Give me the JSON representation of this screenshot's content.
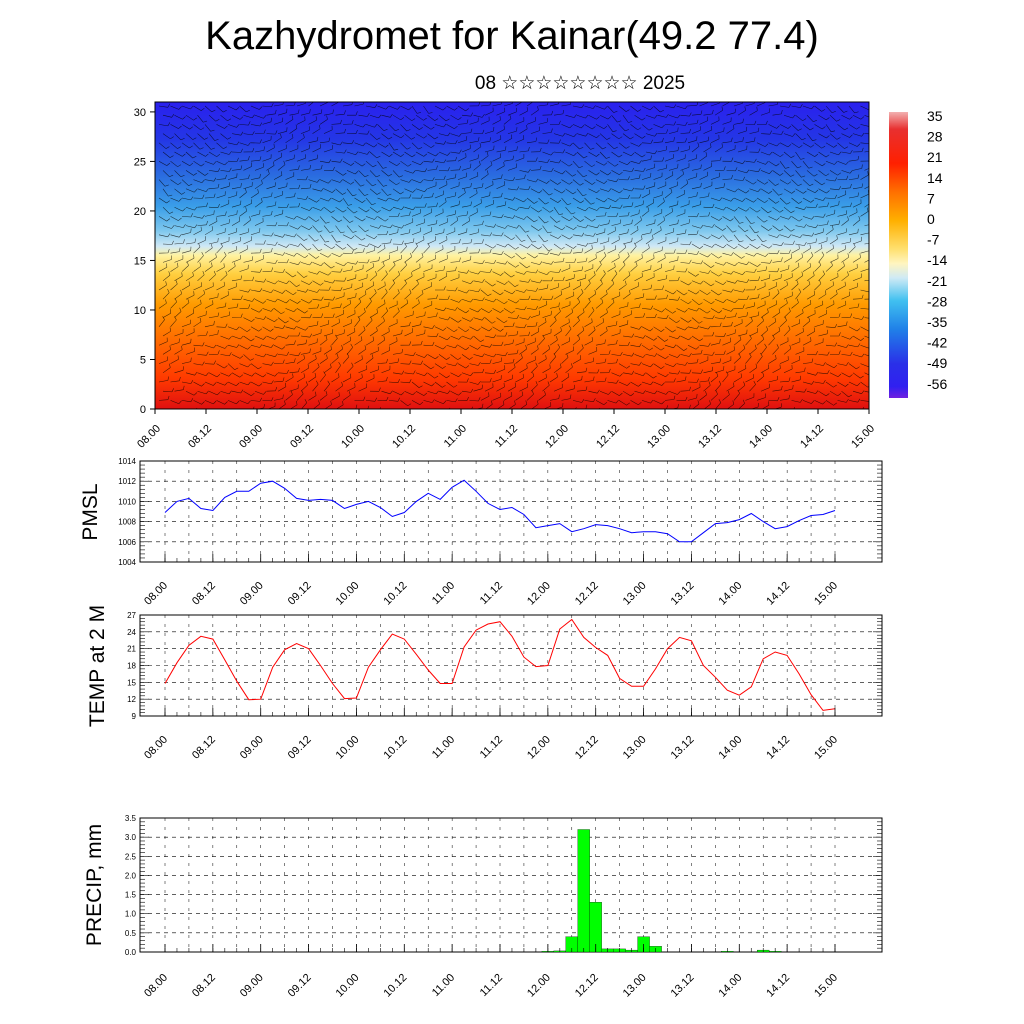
{
  "title": "Kazhydromet for Kainar(49.2 77.4)",
  "subtitle": "08 ☆☆☆☆☆☆☆☆ 2025",
  "colors": {
    "pmsl_line": "#0000ff",
    "temp_line": "#ff0000",
    "precip_bar": "#00ff00",
    "wind_barbs": "#000000"
  },
  "chart_data": [
    {
      "type": "heatmap",
      "name": "upper-air-cross-section",
      "ylim": [
        0,
        31
      ],
      "y_ticks": [
        "0",
        "5",
        "10",
        "15",
        "20",
        "25",
        "30"
      ],
      "x_ticks": [
        "08.00",
        "08.12",
        "09.00",
        "09.12",
        "10.00",
        "10.12",
        "11.00",
        "11.12",
        "12.00",
        "12.12",
        "13.00",
        "13.12",
        "14.00",
        "14.12",
        "15.00"
      ],
      "colorbar_labels": [
        "35",
        "28",
        "21",
        "14",
        "7",
        "0",
        "-7",
        "-14",
        "-21",
        "-28",
        "-35",
        "-42",
        "-49",
        "-56"
      ]
    },
    {
      "type": "line",
      "name": "PMSL",
      "ylabel": "PMSL",
      "ylim": [
        1004,
        1014
      ],
      "y_ticks": [
        "1004",
        "1006",
        "1008",
        "1010",
        "1012",
        "1014"
      ],
      "x_ticks": [
        "08.00",
        "08.12",
        "09.00",
        "09.12",
        "10.00",
        "10.12",
        "11.00",
        "11.12",
        "12.00",
        "12.12",
        "13.00",
        "13.12",
        "14.00",
        "14.12",
        "15.00"
      ],
      "values": [
        1008.9,
        1010.0,
        1010.3,
        1009.3,
        1009.1,
        1010.4,
        1011.0,
        1011.0,
        1011.8,
        1012.0,
        1011.3,
        1010.3,
        1010.1,
        1010.2,
        1010.1,
        1009.3,
        1009.7,
        1010.0,
        1009.4,
        1008.5,
        1008.9,
        1010.0,
        1010.8,
        1010.2,
        1011.4,
        1012.1,
        1011.0,
        1009.8,
        1009.2,
        1009.4,
        1008.7,
        1007.4,
        1007.6,
        1007.8,
        1007.0,
        1007.3,
        1007.7,
        1007.6,
        1007.3,
        1006.9,
        1007.0,
        1007.0,
        1006.8,
        1006.0,
        1006.0,
        1006.9,
        1007.8,
        1007.9,
        1008.2,
        1008.8,
        1008.0,
        1007.3,
        1007.5,
        1008.1,
        1008.6,
        1008.7,
        1009.1
      ]
    },
    {
      "type": "line",
      "name": "TEMP at 2 M",
      "ylabel": "TEMP at 2 M",
      "ylim": [
        9,
        27
      ],
      "y_ticks": [
        "9",
        "12",
        "15",
        "18",
        "21",
        "24",
        "27"
      ],
      "x_ticks": [
        "08.00",
        "08.12",
        "09.00",
        "09.12",
        "10.00",
        "10.12",
        "11.00",
        "11.12",
        "12.00",
        "12.12",
        "13.00",
        "13.12",
        "14.00",
        "14.12",
        "15.00"
      ],
      "values": [
        14.8,
        18.5,
        21.6,
        23.2,
        22.7,
        19.0,
        15.2,
        11.9,
        12.0,
        17.7,
        20.8,
        21.9,
        21.0,
        18.0,
        14.8,
        12.1,
        12.2,
        17.7,
        20.8,
        23.6,
        22.7,
        20.0,
        17.2,
        14.8,
        14.8,
        21.3,
        24.3,
        25.4,
        25.8,
        23.2,
        19.5,
        17.8,
        18.0,
        24.5,
        26.2,
        23.0,
        21.2,
        19.8,
        15.7,
        14.3,
        14.3,
        17.4,
        21.0,
        23.0,
        22.4,
        18.0,
        15.9,
        13.6,
        12.7,
        14.2,
        19.2,
        20.4,
        19.8,
        16.5,
        12.8,
        10.0,
        10.3
      ]
    },
    {
      "type": "bar",
      "name": "PRECIP",
      "ylabel": "PRECIP, mm",
      "ylim": [
        0,
        3.5
      ],
      "y_ticks": [
        "0.0",
        "0.5",
        "1.0",
        "1.5",
        "2.0",
        "2.5",
        "3.0",
        "3.5"
      ],
      "x_ticks": [
        "08.00",
        "08.12",
        "09.00",
        "09.12",
        "10.00",
        "10.12",
        "11.00",
        "11.12",
        "12.00",
        "12.12",
        "13.00",
        "13.12",
        "14.00",
        "14.12",
        "15.00"
      ],
      "values": [
        0,
        0,
        0,
        0,
        0,
        0,
        0,
        0,
        0,
        0,
        0,
        0,
        0,
        0,
        0,
        0,
        0,
        0,
        0,
        0,
        0,
        0,
        0,
        0,
        0,
        0,
        0,
        0,
        0,
        0,
        0,
        0,
        0.02,
        0.03,
        0.4,
        3.2,
        1.3,
        0.08,
        0.08,
        0.05,
        0.4,
        0.15,
        0,
        0,
        0,
        0,
        0,
        0.02,
        0,
        0,
        0.05,
        0.02,
        0,
        0,
        0,
        0,
        0
      ]
    }
  ]
}
